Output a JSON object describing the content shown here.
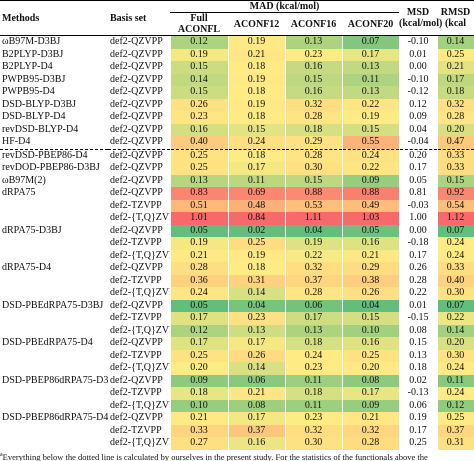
{
  "header": {
    "methods": "Methods",
    "basis": "Basis set",
    "mad": "MAD (kcal/mol)",
    "subcolumns": [
      "Full ACONFL",
      "ACONF12",
      "ACONF16",
      "ACONF20"
    ],
    "msd": [
      "MSD",
      "(kcal/mol)"
    ],
    "rmsd": [
      "RMSD",
      "(kcal"
    ]
  },
  "table": {
    "sections": [
      {
        "rows": [
          [
            "ωB97M-D3BJ",
            "def2-QZVPP",
            "0.12",
            "0.19",
            "0.13",
            "0.07",
            "-0.10",
            "0.14"
          ],
          [
            "B2PLYP-D3BJ",
            "def2-QZVPP",
            "0.19",
            "0.21",
            "0.23",
            "0.17",
            "0.01",
            "0.25"
          ],
          [
            "B2PLYP-D4",
            "def2-QZVPP",
            "0.15",
            "0.18",
            "0.16",
            "0.13",
            "0.00",
            "0.21"
          ],
          [
            "PWPB95-D3BJ",
            "def2-QZVPP",
            "0.14",
            "0.19",
            "0.15",
            "0.11",
            "-0.10",
            "0.17"
          ],
          [
            "PWPB95-D4",
            "def2-QZVPP",
            "0.15",
            "0.18",
            "0.16",
            "0.13",
            "-0.12",
            "0.18"
          ],
          [
            "DSD-BLYP-D3BJ",
            "def2-QZVPP",
            "0.26",
            "0.19",
            "0.32",
            "0.22",
            "0.12",
            "0.32"
          ],
          [
            "DSD-BLYP-D4",
            "def2-QZVPP",
            "0.23",
            "0.18",
            "0.28",
            "0.19",
            "0.09",
            "0.28"
          ],
          [
            "revDSD-BLYP-D4",
            "def2-QZVPP",
            "0.16",
            "0.15",
            "0.18",
            "0.15",
            "0.04",
            "0.20"
          ],
          [
            "HF-D4",
            "def2-QZVPP",
            "0.40",
            "0.24",
            "0.29",
            "0.55",
            "-0.04",
            "0.47"
          ]
        ]
      },
      {
        "rows": [
          [
            "revDSD-PBEP86-D4",
            "def2-QZVPP",
            "0.25",
            "0.18",
            "0.28",
            "0.24",
            "0.20",
            "0.33"
          ],
          [
            "revDOD-PBEP86-D3BJ",
            "def2-QZVPP",
            "0.25",
            "0.17",
            "0.30",
            "0.22",
            "0.17",
            "0.33"
          ],
          [
            "ωB97M(2)",
            "def2-QZVPP",
            "0.13",
            "0.11",
            "0.15",
            "0.09",
            "0.05",
            "0.15"
          ],
          [
            "dRPA75",
            "def2-QZVPP",
            "0.83",
            "0.69",
            "0.88",
            "0.88",
            "0.81",
            "0.92"
          ],
          [
            null,
            "def2-TZVPP",
            "0.51",
            "0.48",
            "0.53",
            "0.49",
            "-0.03",
            "0.54"
          ],
          [
            null,
            "def2-{T,Q}ZVPP",
            "1.01",
            "0.84",
            "1.11",
            "1.03",
            "1.00",
            "1.12"
          ],
          [
            "dRPA75-D3BJ",
            "def2-QZVPP",
            "0.05",
            "0.02",
            "0.04",
            "0.05",
            "0.00",
            "0.07"
          ],
          [
            null,
            "def2-TZVPP",
            "0.19",
            "0.25",
            "0.19",
            "0.16",
            "-0.18",
            "0.24"
          ],
          [
            null,
            "def2-{T,Q}ZVPP",
            "0.21",
            "0.19",
            "0.22",
            "0.21",
            "0.17",
            "0.24"
          ],
          [
            "dRPA75-D4",
            "def2-QZVPP",
            "0.28",
            "0.18",
            "0.32",
            "0.29",
            "0.26",
            "0.33"
          ],
          [
            null,
            "def2-TZVPP",
            "0.36",
            "0.31",
            "0.37",
            "0.38",
            "0.28",
            "0.40"
          ],
          [
            null,
            "def2-{T,Q}ZVPP",
            "0.24",
            "0.14",
            "0.28",
            "0.26",
            "0.22",
            "0.30"
          ],
          [
            "DSD-PBEdRPA75-D3BJ",
            "def2-QZVPP",
            "0.05",
            "0.04",
            "0.06",
            "0.04",
            "0.01",
            "0.07"
          ],
          [
            null,
            "def2-TZVPP",
            "0.17",
            "0.23",
            "0.17",
            "0.15",
            "-0.15",
            "0.22"
          ],
          [
            null,
            "def2-{T,Q}ZVPP",
            "0.12",
            "0.13",
            "0.13",
            "0.10",
            "0.08",
            "0.14"
          ],
          [
            "DSD-PBEdRPA75-D4",
            "def2-QZVPP",
            "0.17",
            "0.17",
            "0.18",
            "0.16",
            "0.15",
            "0.20"
          ],
          [
            null,
            "def2-TZVPP",
            "0.25",
            "0.26",
            "0.24",
            "0.25",
            "0.13",
            "0.30"
          ],
          [
            null,
            "def2-{T,Q}ZVPP",
            "0.20",
            "0.14",
            "0.23",
            "0.20",
            "0.18",
            "0.24"
          ],
          [
            "DSD-PBEP86dRPA75-D3BJ",
            "def2-QZVPP",
            "0.09",
            "0.06",
            "0.11",
            "0.08",
            "0.02",
            "0.11"
          ],
          [
            null,
            "def2-TZVPP",
            "0.18",
            "0.21",
            "0.18",
            "0.17",
            "-0.13",
            "0.24"
          ],
          [
            null,
            "def2-{T,Q}ZVPP",
            "0.10",
            "0.08",
            "0.11",
            "0.09",
            "0.06",
            "0.12"
          ],
          [
            "DSD-PBEP86dRPA75-D4",
            "def2-QZVPP",
            "0.21",
            "0.17",
            "0.23",
            "0.21",
            "0.19",
            "0.25"
          ],
          [
            null,
            "def2-TZVPP",
            "0.33",
            "0.37",
            "0.32",
            "0.32",
            "0.17",
            "0.37"
          ],
          [
            null,
            "def2-{T,Q}ZVPP",
            "0.27",
            "0.16",
            "0.30",
            "0.28",
            "0.25",
            "0.31"
          ]
        ]
      }
    ]
  },
  "color_scale": [
    "#63be7b",
    "#ffeb84",
    "#f8696b"
  ],
  "footnote_mark": "a",
  "footnote": "Everything below the dotted line is calculated by ourselves in the present study. For the statistics of the functionals above the"
}
